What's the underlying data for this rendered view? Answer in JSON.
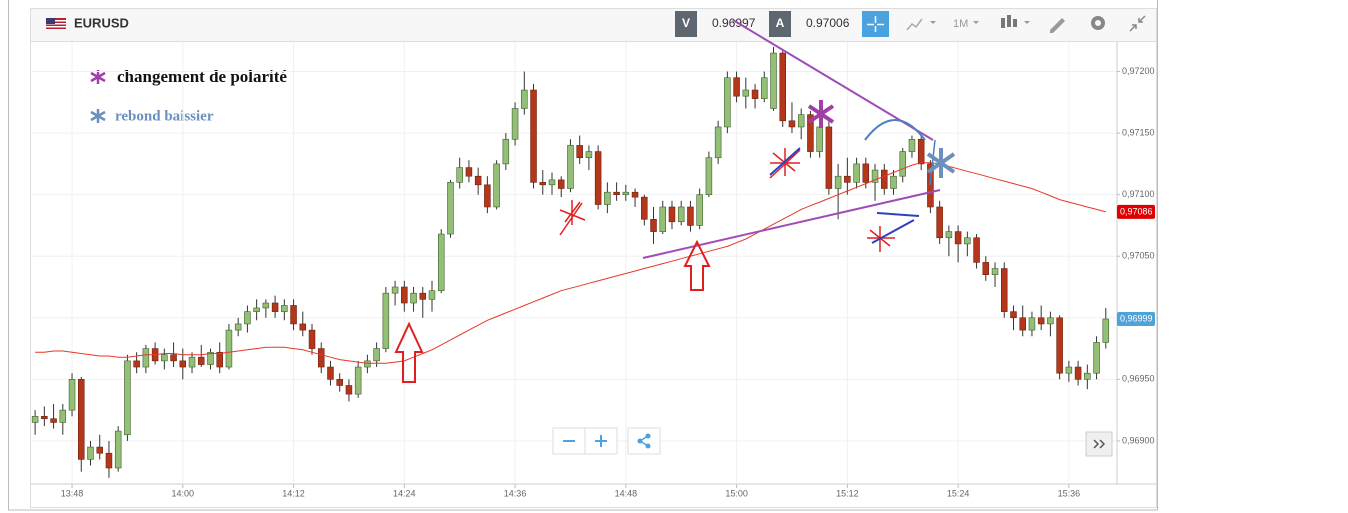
{
  "chart_data": {
    "type": "candlestick",
    "symbol": "EURUSD",
    "bid_label": "V",
    "bid": 0.96997,
    "ask_label": "A",
    "ask": 0.97006,
    "timeframe": "1M",
    "annotations": [
      "changement de polarité",
      "rebond baissier"
    ],
    "categories": [
      null,
      null,
      null,
      null,
      "13:48",
      null,
      null,
      null,
      null,
      null,
      null,
      null,
      null,
      null,
      null,
      null,
      "14:00",
      null,
      null,
      null,
      null,
      null,
      null,
      null,
      null,
      null,
      null,
      null,
      "14:12",
      null,
      null,
      null,
      null,
      null,
      null,
      null,
      null,
      null,
      null,
      null,
      "14:24",
      null,
      null,
      null,
      null,
      null,
      null,
      null,
      null,
      null,
      null,
      null,
      "14:36",
      null,
      null,
      null,
      null,
      null,
      null,
      null,
      null,
      null,
      null,
      null,
      "14:48",
      null,
      null,
      null,
      null,
      null,
      null,
      null,
      null,
      null,
      null,
      null,
      "15:00",
      null,
      null,
      null,
      null,
      null,
      null,
      null,
      null,
      null,
      null,
      null,
      "15:12",
      null,
      null,
      null,
      null,
      null,
      null,
      null,
      null,
      null,
      null,
      null,
      "15:24",
      null,
      null,
      null,
      null,
      null,
      null,
      null,
      null,
      null,
      null,
      null,
      "15:36",
      null,
      null,
      null,
      null
    ],
    "candles": [
      [
        0.96915,
        0.96925,
        0.96905,
        0.9692
      ],
      [
        0.9692,
        0.96928,
        0.96912,
        0.96918
      ],
      [
        0.96918,
        0.9693,
        0.9691,
        0.96915
      ],
      [
        0.96915,
        0.9693,
        0.96905,
        0.96925
      ],
      [
        0.96925,
        0.96955,
        0.9692,
        0.9695
      ],
      [
        0.9695,
        0.96952,
        0.96875,
        0.96885
      ],
      [
        0.96885,
        0.969,
        0.9688,
        0.96895
      ],
      [
        0.96895,
        0.96905,
        0.96885,
        0.9689
      ],
      [
        0.9689,
        0.969,
        0.9687,
        0.96878
      ],
      [
        0.96878,
        0.96912,
        0.96875,
        0.96908
      ],
      [
        0.96905,
        0.9697,
        0.969,
        0.96965
      ],
      [
        0.96965,
        0.96972,
        0.96955,
        0.9696
      ],
      [
        0.9696,
        0.96978,
        0.96955,
        0.96975
      ],
      [
        0.96975,
        0.9698,
        0.96962,
        0.96965
      ],
      [
        0.96965,
        0.96975,
        0.96958,
        0.9697
      ],
      [
        0.9697,
        0.9698,
        0.9696,
        0.96965
      ],
      [
        0.96965,
        0.96975,
        0.9695,
        0.9696
      ],
      [
        0.9696,
        0.96972,
        0.96955,
        0.96968
      ],
      [
        0.96968,
        0.96978,
        0.9696,
        0.96962
      ],
      [
        0.96962,
        0.96975,
        0.96958,
        0.96972
      ],
      [
        0.96972,
        0.9698,
        0.96955,
        0.9696
      ],
      [
        0.9696,
        0.96995,
        0.96958,
        0.9699
      ],
      [
        0.9699,
        0.97,
        0.96985,
        0.96995
      ],
      [
        0.96995,
        0.9701,
        0.96988,
        0.97005
      ],
      [
        0.97005,
        0.97015,
        0.96998,
        0.97008
      ],
      [
        0.97008,
        0.97015,
        0.97,
        0.97012
      ],
      [
        0.97012,
        0.97018,
        0.97,
        0.97005
      ],
      [
        0.97005,
        0.97015,
        0.96998,
        0.9701
      ],
      [
        0.9701,
        0.97015,
        0.9699,
        0.96995
      ],
      [
        0.96995,
        0.97005,
        0.96985,
        0.9699
      ],
      [
        0.9699,
        0.96995,
        0.9697,
        0.96975
      ],
      [
        0.96975,
        0.9698,
        0.96955,
        0.9696
      ],
      [
        0.9696,
        0.96965,
        0.96945,
        0.9695
      ],
      [
        0.9695,
        0.96955,
        0.9694,
        0.96945
      ],
      [
        0.96945,
        0.9695,
        0.96932,
        0.96938
      ],
      [
        0.96938,
        0.96965,
        0.96935,
        0.9696
      ],
      [
        0.9696,
        0.9697,
        0.96955,
        0.96965
      ],
      [
        0.96965,
        0.9698,
        0.9696,
        0.96975
      ],
      [
        0.96975,
        0.97025,
        0.96972,
        0.9702
      ],
      [
        0.9702,
        0.9703,
        0.9701,
        0.97025
      ],
      [
        0.97025,
        0.9703,
        0.97005,
        0.97012
      ],
      [
        0.97012,
        0.97025,
        0.97005,
        0.9702
      ],
      [
        0.9702,
        0.97025,
        0.97,
        0.97015
      ],
      [
        0.97015,
        0.9703,
        0.97005,
        0.97022
      ],
      [
        0.97022,
        0.97072,
        0.9702,
        0.97068
      ],
      [
        0.97068,
        0.97112,
        0.97065,
        0.9711
      ],
      [
        0.9711,
        0.9713,
        0.97105,
        0.97122
      ],
      [
        0.97122,
        0.97128,
        0.9711,
        0.97115
      ],
      [
        0.97115,
        0.97122,
        0.971,
        0.97108
      ],
      [
        0.97108,
        0.97115,
        0.97085,
        0.9709
      ],
      [
        0.9709,
        0.97128,
        0.97088,
        0.97125
      ],
      [
        0.97125,
        0.9715,
        0.9712,
        0.97145
      ],
      [
        0.97145,
        0.97175,
        0.9714,
        0.9717
      ],
      [
        0.9717,
        0.972,
        0.97165,
        0.97185
      ],
      [
        0.97185,
        0.9719,
        0.97105,
        0.9711
      ],
      [
        0.9711,
        0.9712,
        0.971,
        0.97108
      ],
      [
        0.97108,
        0.97118,
        0.971,
        0.97112
      ],
      [
        0.97112,
        0.97115,
        0.97098,
        0.97105
      ],
      [
        0.97105,
        0.97145,
        0.97102,
        0.9714
      ],
      [
        0.9714,
        0.97148,
        0.97125,
        0.9713
      ],
      [
        0.9713,
        0.9714,
        0.9712,
        0.97135
      ],
      [
        0.97135,
        0.9714,
        0.97088,
        0.97092
      ],
      [
        0.97092,
        0.9711,
        0.97085,
        0.97102
      ],
      [
        0.97102,
        0.9711,
        0.97095,
        0.971
      ],
      [
        0.971,
        0.97108,
        0.97095,
        0.97102
      ],
      [
        0.97102,
        0.97105,
        0.9709,
        0.97098
      ],
      [
        0.97098,
        0.971,
        0.97075,
        0.9708
      ],
      [
        0.9708,
        0.9709,
        0.9706,
        0.9707
      ],
      [
        0.9707,
        0.97095,
        0.97068,
        0.9709
      ],
      [
        0.9709,
        0.97095,
        0.97072,
        0.97078
      ],
      [
        0.97078,
        0.97095,
        0.97075,
        0.9709
      ],
      [
        0.9709,
        0.97095,
        0.9707,
        0.97075
      ],
      [
        0.97075,
        0.97105,
        0.97072,
        0.971
      ],
      [
        0.971,
        0.97135,
        0.97098,
        0.9713
      ],
      [
        0.9713,
        0.9716,
        0.97125,
        0.97155
      ],
      [
        0.97155,
        0.972,
        0.9715,
        0.97195
      ],
      [
        0.97195,
        0.972,
        0.97175,
        0.9718
      ],
      [
        0.9718,
        0.97195,
        0.9717,
        0.97185
      ],
      [
        0.97185,
        0.9719,
        0.9717,
        0.97178
      ],
      [
        0.97178,
        0.972,
        0.97175,
        0.97195
      ],
      [
        0.9717,
        0.9722,
        0.97168,
        0.97215
      ],
      [
        0.97215,
        0.97218,
        0.97155,
        0.9716
      ],
      [
        0.9716,
        0.97175,
        0.9715,
        0.97155
      ],
      [
        0.97155,
        0.9717,
        0.97145,
        0.97165
      ],
      [
        0.97165,
        0.97168,
        0.9713,
        0.97135
      ],
      [
        0.97135,
        0.9716,
        0.9713,
        0.97155
      ],
      [
        0.97155,
        0.9716,
        0.971,
        0.97105
      ],
      [
        0.97105,
        0.97125,
        0.9708,
        0.97115
      ],
      [
        0.97115,
        0.9713,
        0.971,
        0.9711
      ],
      [
        0.9711,
        0.9713,
        0.97105,
        0.97125
      ],
      [
        0.97125,
        0.9713,
        0.97105,
        0.9711
      ],
      [
        0.9711,
        0.97125,
        0.97095,
        0.9712
      ],
      [
        0.9712,
        0.97125,
        0.971,
        0.97105
      ],
      [
        0.97105,
        0.9712,
        0.971,
        0.97115
      ],
      [
        0.97115,
        0.97138,
        0.9711,
        0.97135
      ],
      [
        0.97135,
        0.97148,
        0.9713,
        0.97145
      ],
      [
        0.97145,
        0.9715,
        0.9712,
        0.97125
      ],
      [
        0.97125,
        0.97128,
        0.97085,
        0.9709
      ],
      [
        0.9709,
        0.97095,
        0.9706,
        0.97065
      ],
      [
        0.97065,
        0.97075,
        0.9705,
        0.9707
      ],
      [
        0.9707,
        0.97075,
        0.97045,
        0.9706
      ],
      [
        0.9706,
        0.9707,
        0.9705,
        0.97065
      ],
      [
        0.97065,
        0.97068,
        0.9704,
        0.97045
      ],
      [
        0.97045,
        0.9705,
        0.9703,
        0.97035
      ],
      [
        0.97035,
        0.97045,
        0.97025,
        0.9704
      ],
      [
        0.9704,
        0.97045,
        0.97,
        0.97005
      ],
      [
        0.97005,
        0.9701,
        0.9699,
        0.97
      ],
      [
        0.97,
        0.9701,
        0.96985,
        0.9699
      ],
      [
        0.9699,
        0.97005,
        0.96985,
        0.97
      ],
      [
        0.97,
        0.9701,
        0.9699,
        0.96995
      ],
      [
        0.96995,
        0.97005,
        0.96985,
        0.97
      ],
      [
        0.97,
        0.97002,
        0.9695,
        0.96955
      ],
      [
        0.96955,
        0.96965,
        0.96948,
        0.9696
      ],
      [
        0.9696,
        0.96965,
        0.96945,
        0.9695
      ],
      [
        0.9695,
        0.96962,
        0.96942,
        0.96955
      ],
      [
        0.96955,
        0.96985,
        0.9695,
        0.9698
      ],
      [
        0.9698,
        0.97008,
        0.96975,
        0.96999
      ]
    ],
    "up_color": "#93bf76",
    "down_color": "#b5371b",
    "moving_average": {
      "color": "#e8372a",
      "values": [
        0.96972,
        0.96972,
        0.96973,
        0.96973,
        0.96972,
        0.96971,
        0.9697,
        0.96969,
        0.96969,
        0.96968,
        0.96968,
        0.96969,
        0.9697,
        0.9697,
        0.96971,
        0.96971,
        0.9697,
        0.9697,
        0.9697,
        0.96971,
        0.96971,
        0.96972,
        0.96973,
        0.96974,
        0.96975,
        0.96976,
        0.96976,
        0.96976,
        0.96975,
        0.96974,
        0.96972,
        0.9697,
        0.96968,
        0.96966,
        0.96965,
        0.96964,
        0.96963,
        0.96963,
        0.96963,
        0.96964,
        0.96965,
        0.96968,
        0.96971,
        0.96974,
        0.96978,
        0.96982,
        0.96986,
        0.9699,
        0.96994,
        0.96998,
        0.97001,
        0.97004,
        0.97007,
        0.9701,
        0.97013,
        0.97016,
        0.97019,
        0.97022,
        0.97024,
        0.97026,
        0.97028,
        0.9703,
        0.97032,
        0.97034,
        0.97036,
        0.97038,
        0.9704,
        0.97042,
        0.97044,
        0.97046,
        0.97048,
        0.9705,
        0.97052,
        0.97054,
        0.97056,
        0.97058,
        0.97061,
        0.97064,
        0.97068,
        0.97072,
        0.97076,
        0.9708,
        0.97084,
        0.97088,
        0.97091,
        0.97094,
        0.97097,
        0.971,
        0.97103,
        0.97106,
        0.97109,
        0.97112,
        0.97115,
        0.97118,
        0.97121,
        0.97124,
        0.97126,
        0.97126,
        0.97125,
        0.97123,
        0.97121,
        0.97119,
        0.97117,
        0.97115,
        0.97113,
        0.97111,
        0.97109,
        0.97107,
        0.97105,
        0.97102,
        0.97099,
        0.97096,
        0.97094,
        0.97092,
        0.9709,
        0.97088,
        0.97086
      ]
    },
    "price_tags": [
      {
        "value": 0.96999,
        "label": "0,96999",
        "color": "#4fa3d8"
      },
      {
        "value": 0.97086,
        "label": "0,97086",
        "color": "#e00000"
      }
    ],
    "ylim": [
      0.96865,
      0.97224
    ],
    "yticks": [
      {
        "value": 0.969,
        "label": "0,96900"
      },
      {
        "value": 0.9695,
        "label": "0,96950"
      },
      {
        "value": 0.97,
        "label": "0,97000"
      },
      {
        "value": 0.9705,
        "label": "0,97050"
      },
      {
        "value": 0.971,
        "label": "0,97100"
      },
      {
        "value": 0.9715,
        "label": "0,97150"
      },
      {
        "value": 0.972,
        "label": "0,97200"
      }
    ],
    "grid": true
  }
}
